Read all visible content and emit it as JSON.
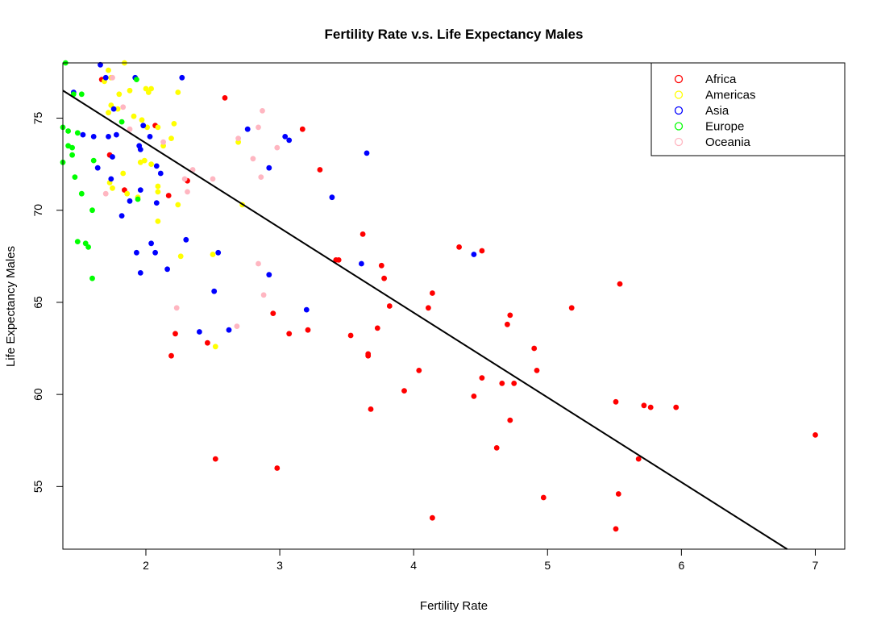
{
  "chart_data": {
    "type": "scatter",
    "title": "Fertility Rate v.s. Life Expectancy Males",
    "xlabel": "Fertility Rate",
    "ylabel": "Life Expectancy Males",
    "xlim": [
      1.38,
      7.22
    ],
    "ylim": [
      51.6,
      78.0
    ],
    "xticks": [
      2,
      3,
      4,
      5,
      6,
      7
    ],
    "yticks": [
      55,
      60,
      65,
      70,
      75
    ],
    "grid": false,
    "legend_position": "top-right",
    "regression_line": {
      "x": [
        1.38,
        6.79
      ],
      "y": [
        76.5,
        51.6
      ],
      "color": "#000000"
    },
    "series": [
      {
        "name": "Africa",
        "color": "#ff0000",
        "points": [
          [
            1.67,
            77.1
          ],
          [
            1.73,
            73.0
          ],
          [
            1.84,
            71.1
          ],
          [
            2.07,
            74.6
          ],
          [
            2.17,
            70.8
          ],
          [
            2.31,
            71.6
          ],
          [
            2.59,
            76.1
          ],
          [
            3.17,
            74.4
          ],
          [
            3.3,
            72.2
          ],
          [
            2.52,
            56.5
          ],
          [
            2.46,
            62.8
          ],
          [
            2.19,
            62.1
          ],
          [
            2.22,
            63.3
          ],
          [
            2.98,
            56.0
          ],
          [
            2.95,
            64.4
          ],
          [
            3.07,
            63.3
          ],
          [
            3.21,
            63.5
          ],
          [
            3.42,
            67.3
          ],
          [
            3.44,
            67.3
          ],
          [
            3.53,
            63.2
          ],
          [
            3.62,
            68.7
          ],
          [
            3.66,
            62.1
          ],
          [
            3.66,
            62.2
          ],
          [
            3.68,
            59.2
          ],
          [
            3.73,
            63.6
          ],
          [
            3.76,
            67.0
          ],
          [
            3.78,
            66.3
          ],
          [
            3.82,
            64.8
          ],
          [
            3.93,
            60.2
          ],
          [
            4.04,
            61.3
          ],
          [
            4.11,
            64.7
          ],
          [
            4.14,
            65.5
          ],
          [
            4.14,
            53.3
          ],
          [
            4.34,
            68.0
          ],
          [
            4.45,
            59.9
          ],
          [
            4.51,
            60.9
          ],
          [
            4.51,
            67.8
          ],
          [
            4.62,
            57.1
          ],
          [
            4.66,
            60.6
          ],
          [
            4.7,
            63.8
          ],
          [
            4.72,
            64.3
          ],
          [
            4.72,
            58.6
          ],
          [
            4.75,
            60.6
          ],
          [
            4.9,
            62.5
          ],
          [
            4.92,
            61.3
          ],
          [
            4.97,
            54.4
          ],
          [
            5.18,
            64.7
          ],
          [
            5.51,
            59.6
          ],
          [
            5.51,
            52.7
          ],
          [
            5.53,
            54.6
          ],
          [
            5.54,
            66.0
          ],
          [
            5.68,
            56.5
          ],
          [
            5.72,
            59.4
          ],
          [
            5.77,
            59.3
          ],
          [
            5.96,
            59.3
          ],
          [
            7.0,
            57.8
          ]
        ]
      },
      {
        "name": "Americas",
        "color": "#ffff00",
        "points": [
          [
            1.69,
            77.0
          ],
          [
            1.72,
            77.6
          ],
          [
            1.74,
            77.2
          ],
          [
            1.8,
            76.3
          ],
          [
            1.84,
            78.0
          ],
          [
            1.88,
            76.5
          ],
          [
            2.0,
            76.6
          ],
          [
            2.02,
            76.4
          ],
          [
            2.04,
            76.6
          ],
          [
            2.24,
            76.4
          ],
          [
            1.72,
            75.3
          ],
          [
            1.74,
            75.7
          ],
          [
            1.79,
            75.5
          ],
          [
            1.91,
            75.1
          ],
          [
            1.97,
            74.9
          ],
          [
            2.01,
            74.5
          ],
          [
            2.09,
            74.5
          ],
          [
            2.13,
            73.5
          ],
          [
            2.19,
            73.9
          ],
          [
            2.21,
            74.7
          ],
          [
            1.96,
            72.6
          ],
          [
            1.99,
            72.7
          ],
          [
            2.04,
            72.5
          ],
          [
            1.83,
            72.0
          ],
          [
            1.73,
            71.5
          ],
          [
            1.75,
            71.2
          ],
          [
            1.86,
            70.9
          ],
          [
            1.94,
            70.7
          ],
          [
            2.09,
            71.3
          ],
          [
            2.09,
            71.0
          ],
          [
            2.09,
            69.4
          ],
          [
            2.24,
            70.3
          ],
          [
            2.26,
            67.5
          ],
          [
            2.5,
            67.6
          ],
          [
            2.52,
            62.6
          ],
          [
            2.69,
            73.7
          ],
          [
            2.72,
            70.3
          ]
        ]
      },
      {
        "name": "Asia",
        "color": "#0000ff",
        "points": [
          [
            1.66,
            77.9
          ],
          [
            1.7,
            77.2
          ],
          [
            1.92,
            77.2
          ],
          [
            2.27,
            77.2
          ],
          [
            1.46,
            76.4
          ],
          [
            1.53,
            74.1
          ],
          [
            1.61,
            74.0
          ],
          [
            1.72,
            74.0
          ],
          [
            1.76,
            75.5
          ],
          [
            1.78,
            74.1
          ],
          [
            1.95,
            73.5
          ],
          [
            1.96,
            73.3
          ],
          [
            1.98,
            74.6
          ],
          [
            2.03,
            74.0
          ],
          [
            2.08,
            72.4
          ],
          [
            2.11,
            72.0
          ],
          [
            1.64,
            72.3
          ],
          [
            1.75,
            72.9
          ],
          [
            1.74,
            71.7
          ],
          [
            1.96,
            71.1
          ],
          [
            1.88,
            70.5
          ],
          [
            1.82,
            69.7
          ],
          [
            2.08,
            70.4
          ],
          [
            2.04,
            68.2
          ],
          [
            2.07,
            67.7
          ],
          [
            1.93,
            67.7
          ],
          [
            1.96,
            66.6
          ],
          [
            2.16,
            66.8
          ],
          [
            2.3,
            68.4
          ],
          [
            2.54,
            67.7
          ],
          [
            2.51,
            65.6
          ],
          [
            2.4,
            63.4
          ],
          [
            2.62,
            63.5
          ],
          [
            2.76,
            74.4
          ],
          [
            2.92,
            72.3
          ],
          [
            3.04,
            74.0
          ],
          [
            3.07,
            73.8
          ],
          [
            2.92,
            66.5
          ],
          [
            3.2,
            64.6
          ],
          [
            3.39,
            70.7
          ],
          [
            3.61,
            67.1
          ],
          [
            3.65,
            73.1
          ],
          [
            4.45,
            67.6
          ]
        ]
      },
      {
        "name": "Europe",
        "color": "#00ff00",
        "points": [
          [
            1.4,
            78.0
          ],
          [
            1.38,
            74.5
          ],
          [
            1.38,
            72.6
          ],
          [
            1.42,
            74.3
          ],
          [
            1.42,
            73.5
          ],
          [
            1.45,
            73.4
          ],
          [
            1.45,
            73.0
          ],
          [
            1.47,
            71.8
          ],
          [
            1.46,
            76.3
          ],
          [
            1.49,
            74.2
          ],
          [
            1.52,
            76.3
          ],
          [
            1.52,
            70.9
          ],
          [
            1.49,
            68.3
          ],
          [
            1.55,
            68.2
          ],
          [
            1.57,
            68.0
          ],
          [
            1.6,
            66.3
          ],
          [
            1.6,
            70.0
          ],
          [
            1.61,
            72.7
          ],
          [
            1.82,
            74.8
          ],
          [
            1.93,
            77.1
          ],
          [
            1.94,
            70.6
          ]
        ]
      },
      {
        "name": "Oceania",
        "color": "#ffb6c1",
        "points": [
          [
            1.75,
            77.2
          ],
          [
            1.83,
            75.6
          ],
          [
            1.88,
            74.4
          ],
          [
            1.7,
            70.9
          ],
          [
            2.13,
            73.7
          ],
          [
            2.29,
            71.7
          ],
          [
            2.31,
            71.0
          ],
          [
            2.35,
            72.2
          ],
          [
            2.5,
            71.7
          ],
          [
            2.23,
            64.7
          ],
          [
            2.69,
            73.9
          ],
          [
            2.68,
            63.7
          ],
          [
            2.8,
            72.8
          ],
          [
            2.84,
            74.5
          ],
          [
            2.87,
            75.4
          ],
          [
            2.84,
            67.1
          ],
          [
            2.86,
            71.8
          ],
          [
            2.88,
            65.4
          ],
          [
            2.98,
            73.4
          ]
        ]
      }
    ]
  }
}
